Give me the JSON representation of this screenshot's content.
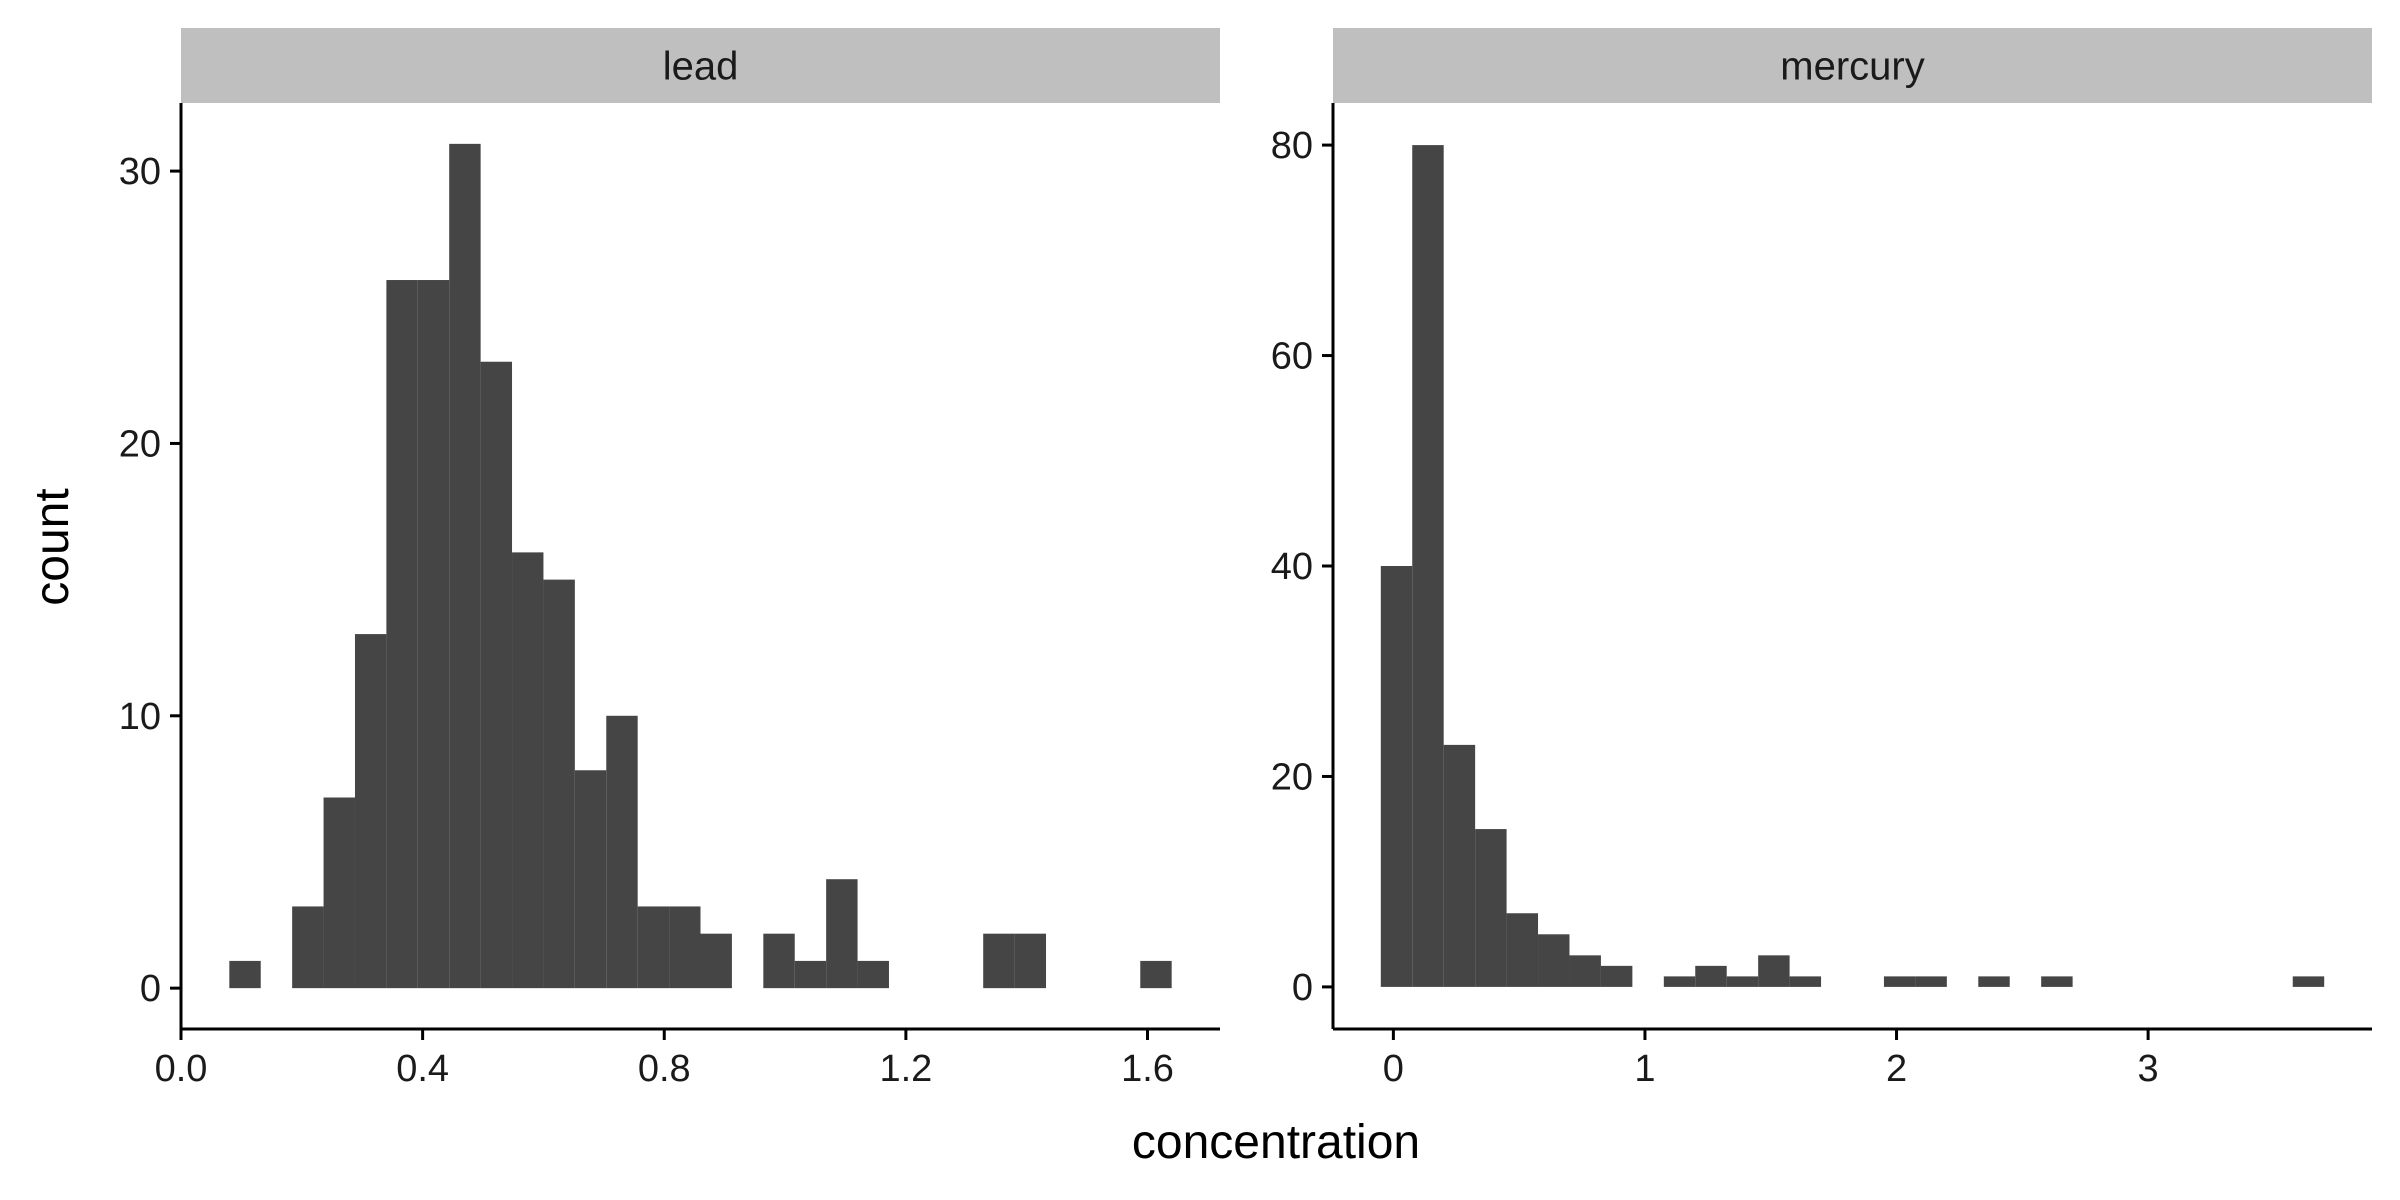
{
  "chart_data": {
    "type": "bar",
    "xlabel": "concentration",
    "ylabel": "count",
    "bar_color": "#454545",
    "strip_color": "#bfbfbf",
    "panels": [
      {
        "strip": "lead",
        "xlim": [
          0.0,
          1.72
        ],
        "ylim": [
          -1.5,
          32.5
        ],
        "xticks": [
          0.0,
          0.4,
          0.8,
          1.2,
          1.6
        ],
        "xtick_labels": [
          "0.0",
          "0.4",
          "0.8",
          "1.2",
          "1.6"
        ],
        "yticks": [
          0,
          10,
          20,
          30
        ],
        "ytick_labels": [
          "0",
          "10",
          "20",
          "30"
        ],
        "bins": [
          {
            "x0": 0.08,
            "x1": 0.132,
            "count": 1
          },
          {
            "x0": 0.184,
            "x1": 0.236,
            "count": 3
          },
          {
            "x0": 0.236,
            "x1": 0.288,
            "count": 7
          },
          {
            "x0": 0.288,
            "x1": 0.34,
            "count": 13
          },
          {
            "x0": 0.34,
            "x1": 0.392,
            "count": 26
          },
          {
            "x0": 0.392,
            "x1": 0.444,
            "count": 26
          },
          {
            "x0": 0.444,
            "x1": 0.496,
            "count": 31
          },
          {
            "x0": 0.496,
            "x1": 0.548,
            "count": 23
          },
          {
            "x0": 0.548,
            "x1": 0.6,
            "count": 16
          },
          {
            "x0": 0.6,
            "x1": 0.652,
            "count": 15
          },
          {
            "x0": 0.652,
            "x1": 0.704,
            "count": 8
          },
          {
            "x0": 0.704,
            "x1": 0.756,
            "count": 10
          },
          {
            "x0": 0.756,
            "x1": 0.808,
            "count": 3
          },
          {
            "x0": 0.808,
            "x1": 0.86,
            "count": 3
          },
          {
            "x0": 0.86,
            "x1": 0.912,
            "count": 2
          },
          {
            "x0": 0.964,
            "x1": 1.016,
            "count": 2
          },
          {
            "x0": 1.016,
            "x1": 1.068,
            "count": 1
          },
          {
            "x0": 1.068,
            "x1": 1.12,
            "count": 4
          },
          {
            "x0": 1.12,
            "x1": 1.172,
            "count": 1
          },
          {
            "x0": 1.328,
            "x1": 1.38,
            "count": 2
          },
          {
            "x0": 1.38,
            "x1": 1.432,
            "count": 2
          },
          {
            "x0": 1.588,
            "x1": 1.64,
            "count": 1
          }
        ]
      },
      {
        "strip": "mercury",
        "xlim": [
          -0.24,
          3.89
        ],
        "ylim": [
          -4,
          84
        ],
        "xticks": [
          0,
          1,
          2,
          3
        ],
        "xtick_labels": [
          "0",
          "1",
          "2",
          "3"
        ],
        "yticks": [
          0,
          20,
          40,
          60,
          80
        ],
        "ytick_labels": [
          "0",
          "20",
          "40",
          "60",
          "80"
        ],
        "bins": [
          {
            "x0": -0.05,
            "x1": 0.075,
            "count": 40
          },
          {
            "x0": 0.075,
            "x1": 0.2,
            "count": 80
          },
          {
            "x0": 0.2,
            "x1": 0.325,
            "count": 23
          },
          {
            "x0": 0.325,
            "x1": 0.45,
            "count": 15
          },
          {
            "x0": 0.45,
            "x1": 0.575,
            "count": 7
          },
          {
            "x0": 0.575,
            "x1": 0.7,
            "count": 5
          },
          {
            "x0": 0.7,
            "x1": 0.825,
            "count": 3
          },
          {
            "x0": 0.825,
            "x1": 0.95,
            "count": 2
          },
          {
            "x0": 1.075,
            "x1": 1.2,
            "count": 1
          },
          {
            "x0": 1.2,
            "x1": 1.325,
            "count": 2
          },
          {
            "x0": 1.325,
            "x1": 1.45,
            "count": 1
          },
          {
            "x0": 1.45,
            "x1": 1.575,
            "count": 3
          },
          {
            "x0": 1.575,
            "x1": 1.7,
            "count": 1
          },
          {
            "x0": 1.95,
            "x1": 2.075,
            "count": 1
          },
          {
            "x0": 2.075,
            "x1": 2.2,
            "count": 1
          },
          {
            "x0": 2.325,
            "x1": 2.45,
            "count": 1
          },
          {
            "x0": 2.575,
            "x1": 2.7,
            "count": 1
          },
          {
            "x0": 3.575,
            "x1": 3.7,
            "count": 1
          }
        ]
      }
    ]
  }
}
